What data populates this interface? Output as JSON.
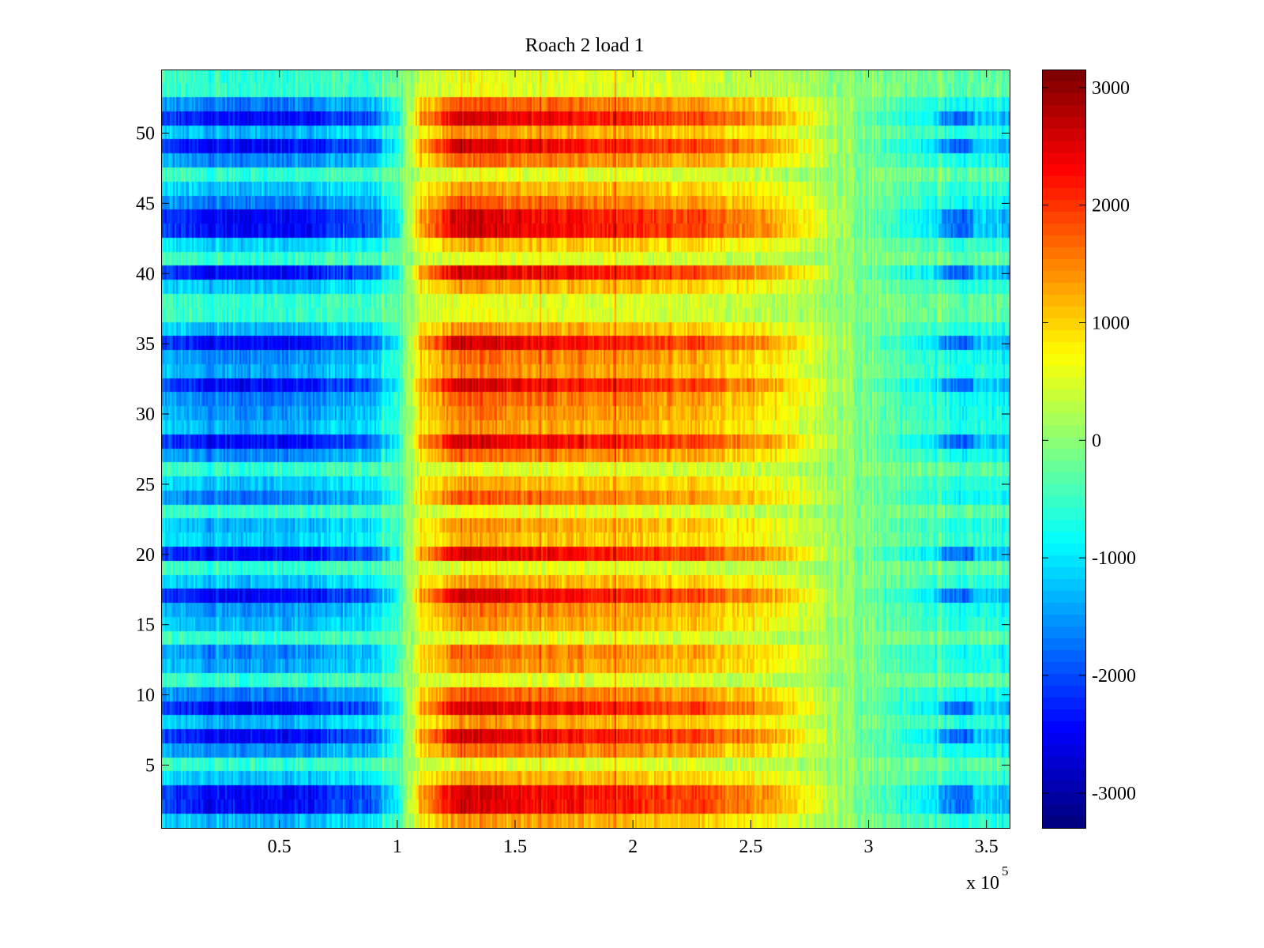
{
  "chart_data": {
    "type": "heatmap",
    "title": "Roach 2 load 1",
    "xlabel": "",
    "ylabel": "",
    "x_range": [
      0,
      360000
    ],
    "y_range": [
      0.5,
      54.5
    ],
    "x_ticks": [
      50000,
      100000,
      150000,
      200000,
      250000,
      300000,
      350000
    ],
    "x_tick_labels": [
      "0.5",
      "1",
      "1.5",
      "2",
      "2.5",
      "3",
      "3.5"
    ],
    "x_exponent_label": "x 10",
    "x_exponent_power": "5",
    "y_ticks": [
      5,
      10,
      15,
      20,
      25,
      30,
      35,
      40,
      45,
      50
    ],
    "y_tick_labels": [
      "5",
      "10",
      "15",
      "20",
      "25",
      "30",
      "35",
      "40",
      "45",
      "50"
    ],
    "rows": 54,
    "colormap": "jet",
    "clim": [
      -3300,
      3150
    ],
    "colorbar_ticks": [
      3000,
      2000,
      1000,
      0,
      -1000,
      -2000,
      -3000
    ],
    "colorbar_tick_labels": [
      "3000",
      "2000",
      "1000",
      "0",
      "-1000",
      "-2000",
      "-3000"
    ],
    "column_profile_x": [
      0,
      20000,
      60000,
      90000,
      100000,
      110000,
      125000,
      150000,
      200000,
      230000,
      260000,
      280000,
      300000,
      330000,
      360000
    ],
    "column_profile_value": [
      -1100,
      -1300,
      -1300,
      -1000,
      -500,
      600,
      1400,
      1300,
      1100,
      1000,
      700,
      250,
      -150,
      -550,
      -700
    ],
    "strong_rows": [
      2,
      3,
      7,
      9,
      17,
      20,
      28,
      32,
      35,
      40,
      43,
      44,
      49,
      51
    ],
    "weak_rows": [
      5,
      11,
      14,
      19,
      23,
      26,
      37,
      38,
      41,
      47,
      53,
      54
    ]
  }
}
